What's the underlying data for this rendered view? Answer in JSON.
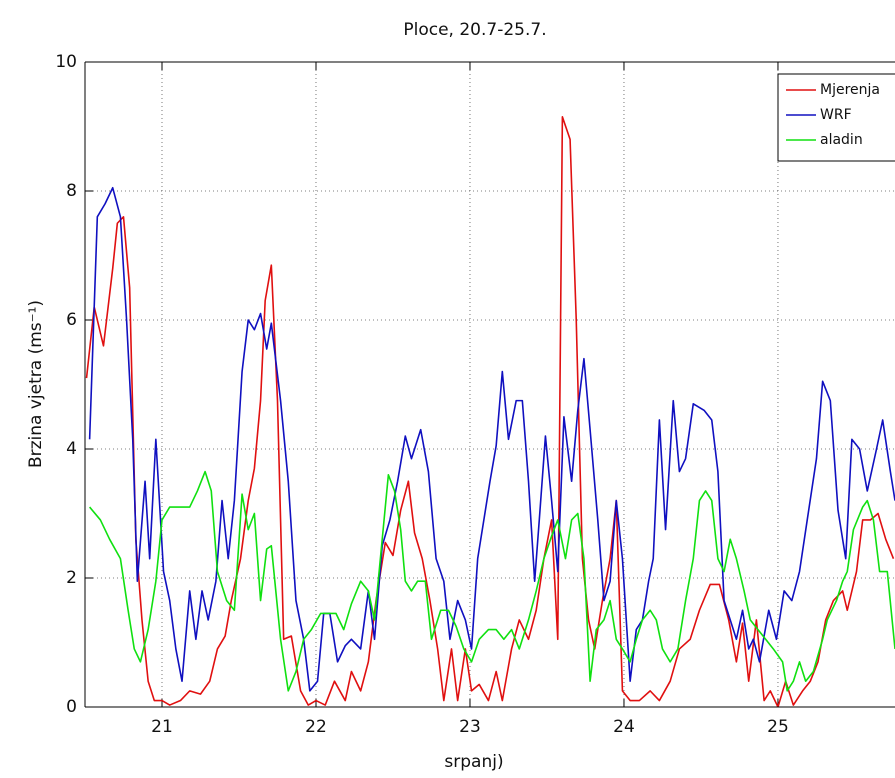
{
  "chart_data": {
    "type": "line",
    "title": "Ploce, 20.7-25.7.",
    "xlabel": "srpanj)",
    "ylabel": "Brzina vjetra (ms⁻¹)",
    "xlim": [
      20.5,
      25.76
    ],
    "ylim": [
      0,
      10
    ],
    "xticks": [
      21,
      22,
      23,
      24,
      25
    ],
    "yticks": [
      0,
      2,
      4,
      6,
      8,
      10
    ],
    "grid": true,
    "legend": "northeast",
    "series": [
      {
        "name": "Mjerenja",
        "color": "#e01010",
        "x": [
          20.51,
          20.56,
          20.62,
          20.68,
          20.71,
          20.75,
          20.79,
          20.83,
          20.87,
          20.91,
          20.95,
          21.0,
          21.05,
          21.12,
          21.18,
          21.25,
          21.31,
          21.36,
          21.41,
          21.45,
          21.51,
          21.56,
          21.6,
          21.64,
          21.67,
          21.71,
          21.75,
          21.79,
          21.84,
          21.9,
          21.95,
          22.0,
          22.06,
          22.12,
          22.19,
          22.23,
          22.29,
          22.34,
          22.39,
          22.45,
          22.5,
          22.55,
          22.6,
          22.64,
          22.69,
          22.74,
          22.79,
          22.83,
          22.88,
          22.92,
          22.97,
          23.01,
          23.06,
          23.12,
          23.17,
          23.21,
          23.27,
          23.32,
          23.38,
          23.43,
          23.48,
          23.53,
          23.57,
          23.6,
          23.65,
          23.69,
          23.73,
          23.77,
          23.81,
          23.86,
          23.91,
          23.95,
          23.99,
          24.04,
          24.1,
          24.17,
          24.23,
          24.3,
          24.36,
          24.43,
          24.49,
          24.56,
          24.62,
          24.68,
          24.73,
          24.77,
          24.81,
          24.86,
          24.91,
          24.95,
          25.0,
          25.05,
          25.1,
          25.16,
          25.21,
          25.26,
          25.31,
          25.36,
          25.42,
          25.45,
          25.51,
          25.55,
          25.6,
          25.65,
          25.7,
          25.75
        ],
        "values": [
          5.1,
          6.2,
          5.6,
          6.8,
          7.5,
          7.6,
          6.5,
          2.6,
          1.35,
          0.4,
          0.1,
          0.1,
          0.03,
          0.1,
          0.25,
          0.2,
          0.4,
          0.9,
          1.1,
          1.65,
          2.3,
          3.2,
          3.7,
          4.75,
          6.3,
          6.85,
          4.75,
          1.05,
          1.1,
          0.25,
          0.03,
          0.1,
          0.03,
          0.4,
          0.1,
          0.55,
          0.25,
          0.7,
          1.65,
          2.55,
          2.35,
          3.05,
          3.5,
          2.7,
          2.3,
          1.65,
          0.9,
          0.1,
          0.9,
          0.1,
          0.9,
          0.25,
          0.35,
          0.1,
          0.55,
          0.1,
          0.9,
          1.35,
          1.05,
          1.5,
          2.3,
          2.9,
          1.05,
          9.15,
          8.8,
          6.0,
          2.3,
          1.35,
          0.9,
          1.65,
          2.3,
          3.2,
          0.25,
          0.1,
          0.1,
          0.25,
          0.1,
          0.4,
          0.9,
          1.05,
          1.5,
          1.9,
          1.9,
          1.35,
          0.7,
          1.3,
          0.4,
          1.35,
          0.1,
          0.25,
          0,
          0.4,
          0.03,
          0.25,
          0.4,
          0.7,
          1.35,
          1.65,
          1.8,
          1.5,
          2.1,
          2.9,
          2.9,
          3.0,
          2.6,
          2.3
        ]
      },
      {
        "name": "WRF",
        "color": "#1010c0",
        "x": [
          20.53,
          20.58,
          20.63,
          20.68,
          20.73,
          20.77,
          20.81,
          20.84,
          20.89,
          20.92,
          20.96,
          21.01,
          21.05,
          21.09,
          21.13,
          21.18,
          21.22,
          21.26,
          21.3,
          21.35,
          21.39,
          21.43,
          21.47,
          21.52,
          21.56,
          21.6,
          21.64,
          21.68,
          21.71,
          21.77,
          21.82,
          21.87,
          21.92,
          21.96,
          22.01,
          22.05,
          22.09,
          22.14,
          22.19,
          22.23,
          22.29,
          22.34,
          22.38,
          22.43,
          22.48,
          22.53,
          22.58,
          22.62,
          22.68,
          22.73,
          22.78,
          22.83,
          22.87,
          22.92,
          22.97,
          23.01,
          23.05,
          23.09,
          23.13,
          23.17,
          23.21,
          23.25,
          23.3,
          23.34,
          23.38,
          23.42,
          23.45,
          23.49,
          23.53,
          23.57,
          23.61,
          23.66,
          23.7,
          23.74,
          23.78,
          23.83,
          23.87,
          23.91,
          23.95,
          23.99,
          24.04,
          24.08,
          24.12,
          24.16,
          24.19,
          24.23,
          24.27,
          24.32,
          24.36,
          24.4,
          24.45,
          24.52,
          24.57,
          24.61,
          24.65,
          24.69,
          24.73,
          24.77,
          24.81,
          24.84,
          24.88,
          24.94,
          24.99,
          25.04,
          25.09,
          25.14,
          25.19,
          25.25,
          25.29,
          25.34,
          25.39,
          25.44,
          25.48,
          25.53,
          25.58,
          25.64,
          25.68,
          25.73,
          25.76
        ],
        "values": [
          4.15,
          7.6,
          7.8,
          8.05,
          7.6,
          6.0,
          4.15,
          1.95,
          3.5,
          2.3,
          4.15,
          2.1,
          1.65,
          0.9,
          0.4,
          1.8,
          1.05,
          1.8,
          1.35,
          1.95,
          3.2,
          2.3,
          3.2,
          5.2,
          6.0,
          5.85,
          6.1,
          5.55,
          5.95,
          4.75,
          3.5,
          1.65,
          1.05,
          0.25,
          0.4,
          1.45,
          1.45,
          0.7,
          0.95,
          1.05,
          0.9,
          1.8,
          1.05,
          2.5,
          2.9,
          3.5,
          4.2,
          3.85,
          4.3,
          3.65,
          2.3,
          1.95,
          1.05,
          1.65,
          1.35,
          0.9,
          2.3,
          2.9,
          3.5,
          4.05,
          5.2,
          4.15,
          4.75,
          4.75,
          3.5,
          1.95,
          2.9,
          4.2,
          3.2,
          2.1,
          4.5,
          3.5,
          4.6,
          5.4,
          4.3,
          2.9,
          1.65,
          1.95,
          3.2,
          2.3,
          0.4,
          1.2,
          1.35,
          1.95,
          2.3,
          4.45,
          2.75,
          4.75,
          3.65,
          3.85,
          4.7,
          4.6,
          4.45,
          3.65,
          1.65,
          1.35,
          1.05,
          1.5,
          0.9,
          1.05,
          0.7,
          1.5,
          1.05,
          1.8,
          1.65,
          2.1,
          2.9,
          3.85,
          5.05,
          4.75,
          3.05,
          2.3,
          4.15,
          4.0,
          3.35,
          4.0,
          4.45,
          3.65,
          3.2
        ]
      },
      {
        "name": "aladin",
        "color": "#10e010",
        "x": [
          20.53,
          20.6,
          20.66,
          20.73,
          20.78,
          20.82,
          20.86,
          20.91,
          20.96,
          21.0,
          21.05,
          21.12,
          21.18,
          21.23,
          21.28,
          21.32,
          21.36,
          21.42,
          21.47,
          21.52,
          21.56,
          21.6,
          21.64,
          21.68,
          21.71,
          21.77,
          21.82,
          21.87,
          21.92,
          21.97,
          22.03,
          22.08,
          22.13,
          22.18,
          22.23,
          22.29,
          22.34,
          22.38,
          22.43,
          22.47,
          22.51,
          22.55,
          22.58,
          22.62,
          22.66,
          22.71,
          22.75,
          22.81,
          22.86,
          22.91,
          22.96,
          23.01,
          23.06,
          23.12,
          23.17,
          23.22,
          23.27,
          23.32,
          23.38,
          23.43,
          23.48,
          23.53,
          23.57,
          23.62,
          23.66,
          23.7,
          23.74,
          23.78,
          23.82,
          23.87,
          23.91,
          23.95,
          23.99,
          24.04,
          24.08,
          24.12,
          24.17,
          24.21,
          24.25,
          24.3,
          24.35,
          24.4,
          24.45,
          24.49,
          24.53,
          24.57,
          24.61,
          24.65,
          24.69,
          24.73,
          24.78,
          24.82,
          24.87,
          24.92,
          24.97,
          25.03,
          25.06,
          25.1,
          25.14,
          25.18,
          25.23,
          25.29,
          25.32,
          25.38,
          25.42,
          25.45,
          25.49,
          25.55,
          25.58,
          25.62,
          25.66,
          25.71,
          25.76
        ],
        "values": [
          3.1,
          2.9,
          2.6,
          2.3,
          1.5,
          0.9,
          0.7,
          1.2,
          1.95,
          2.9,
          3.1,
          3.1,
          3.1,
          3.35,
          3.65,
          3.35,
          2.1,
          1.65,
          1.5,
          3.3,
          2.75,
          3.0,
          1.65,
          2.45,
          2.5,
          1.05,
          0.25,
          0.55,
          1.05,
          1.2,
          1.45,
          1.45,
          1.45,
          1.2,
          1.6,
          1.95,
          1.8,
          1.35,
          2.6,
          3.6,
          3.35,
          2.75,
          1.95,
          1.8,
          1.95,
          1.95,
          1.05,
          1.5,
          1.5,
          1.25,
          0.9,
          0.7,
          1.05,
          1.2,
          1.2,
          1.05,
          1.2,
          0.9,
          1.35,
          1.8,
          2.3,
          2.65,
          2.9,
          2.3,
          2.9,
          3.0,
          2.3,
          0.4,
          1.2,
          1.35,
          1.65,
          1.05,
          0.9,
          0.7,
          1.05,
          1.35,
          1.5,
          1.35,
          0.9,
          0.7,
          0.9,
          1.65,
          2.3,
          3.2,
          3.35,
          3.2,
          2.3,
          2.1,
          2.6,
          2.3,
          1.8,
          1.35,
          1.2,
          1.05,
          0.9,
          0.7,
          0.25,
          0.4,
          0.7,
          0.4,
          0.55,
          1.05,
          1.35,
          1.65,
          1.95,
          2.1,
          2.75,
          3.1,
          3.2,
          2.9,
          2.1,
          2.1,
          0.9
        ]
      }
    ]
  }
}
